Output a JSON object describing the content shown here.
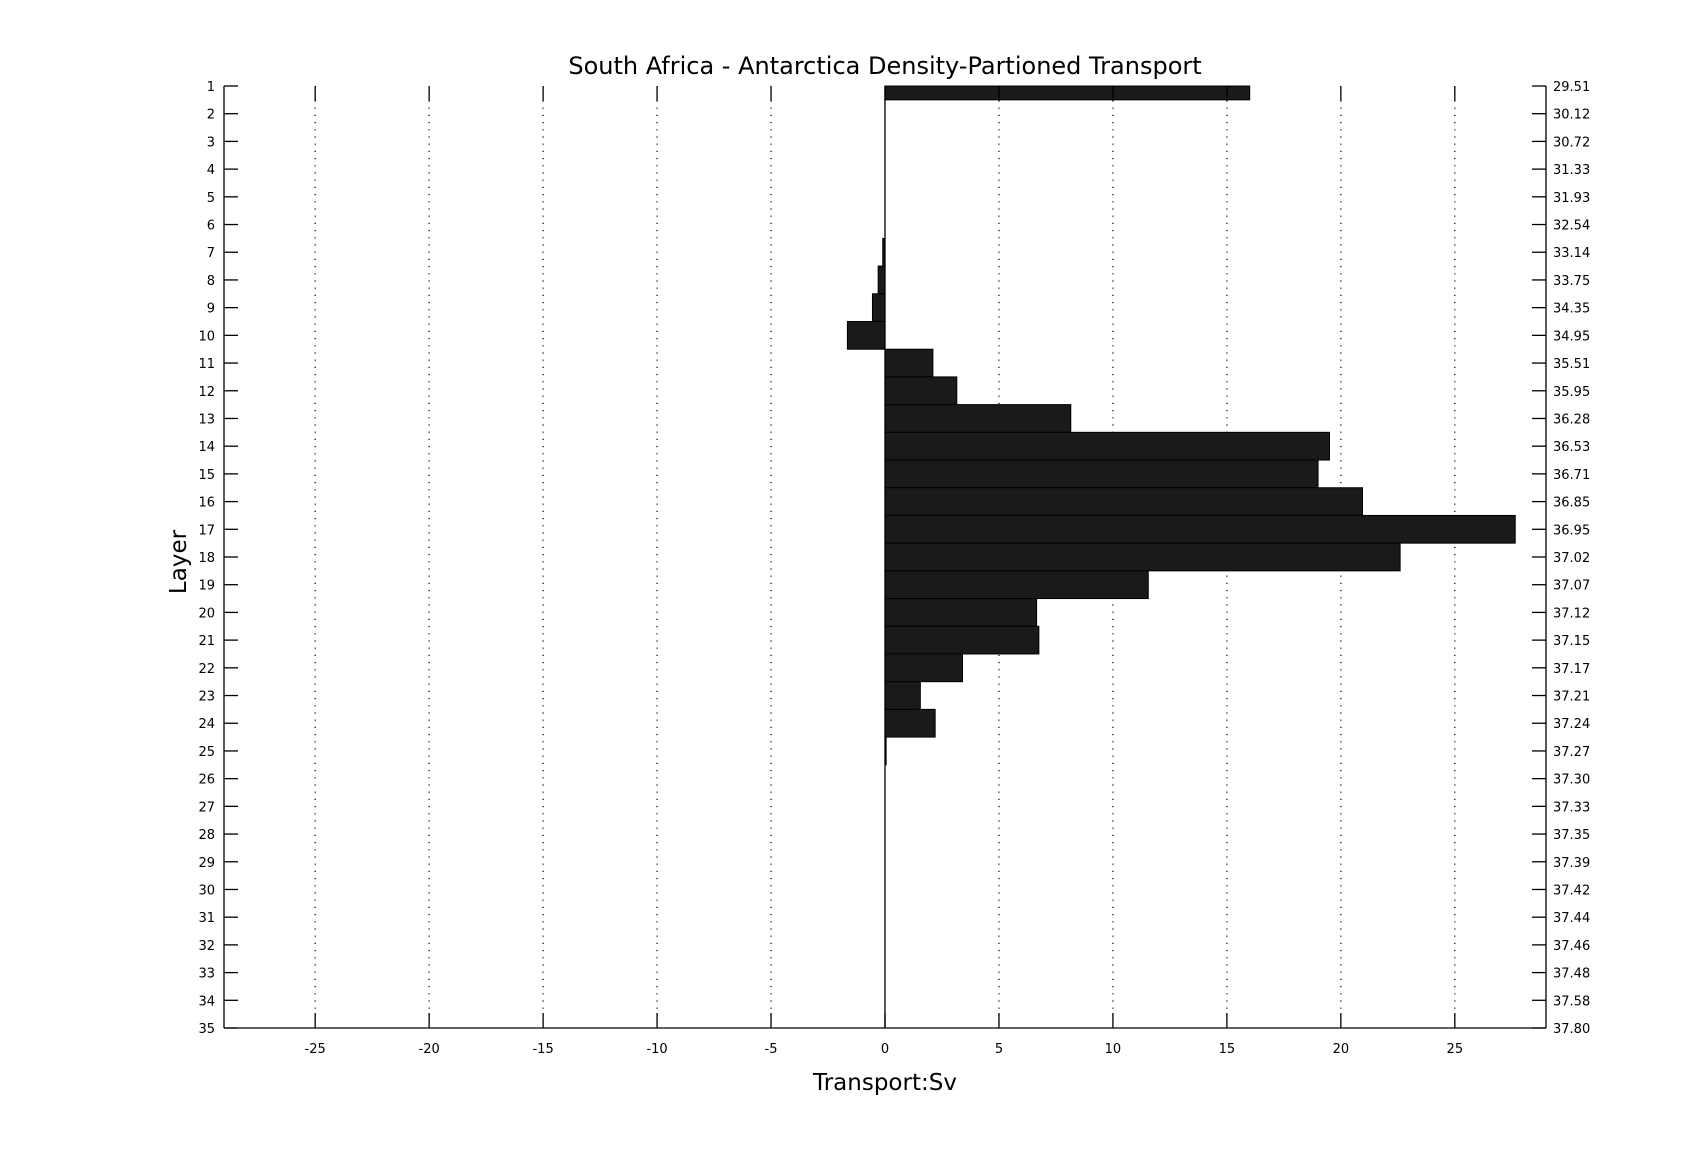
{
  "chart_data": {
    "type": "bar",
    "orientation": "horizontal",
    "title": "South Africa - Antarctica Density-Partioned Transport",
    "xlabel": "Transport:Sv",
    "ylabel": "Layer",
    "xlim": [
      -29,
      29
    ],
    "ylim": [
      1,
      35
    ],
    "y_reversed": true,
    "grid": "vertical dotted",
    "bar_color": "#1a1a1a",
    "xticks": [
      -25,
      -20,
      -15,
      -10,
      -5,
      0,
      5,
      10,
      15,
      20,
      25
    ],
    "layers": [
      1,
      2,
      3,
      4,
      5,
      6,
      7,
      8,
      9,
      10,
      11,
      12,
      13,
      14,
      15,
      16,
      17,
      18,
      19,
      20,
      21,
      22,
      23,
      24,
      25,
      26,
      27,
      28,
      29,
      30,
      31,
      32,
      33,
      34,
      35
    ],
    "right_axis_labels": [
      "29.51",
      "30.12",
      "30.72",
      "31.33",
      "31.93",
      "32.54",
      "33.14",
      "33.75",
      "34.35",
      "34.95",
      "35.51",
      "35.95",
      "36.28",
      "36.53",
      "36.71",
      "36.85",
      "36.95",
      "37.02",
      "37.07",
      "37.12",
      "37.15",
      "37.17",
      "37.21",
      "37.24",
      "37.27",
      "37.30",
      "37.33",
      "37.35",
      "37.39",
      "37.42",
      "37.44",
      "37.46",
      "37.48",
      "37.58",
      "37.80"
    ],
    "values": [
      16.0,
      0,
      0,
      0,
      0,
      0,
      -0.1,
      -0.3,
      -0.55,
      -1.65,
      2.1,
      3.15,
      8.15,
      19.5,
      19.0,
      20.95,
      27.65,
      22.6,
      11.55,
      6.65,
      6.75,
      3.4,
      1.55,
      2.2,
      0.05,
      0,
      0,
      0,
      0,
      0,
      0,
      0,
      0,
      0,
      0
    ]
  }
}
